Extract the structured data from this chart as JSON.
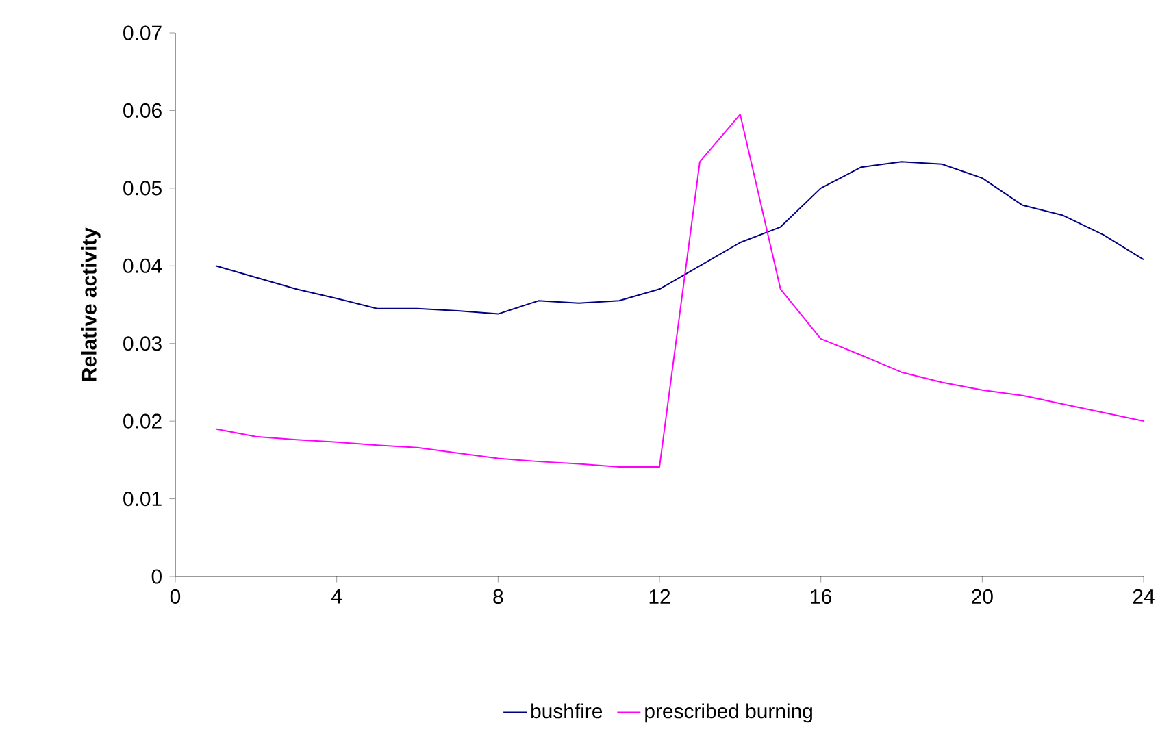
{
  "chart_data": {
    "type": "line",
    "ylabel": "Relative activity",
    "x": [
      1,
      2,
      3,
      4,
      5,
      6,
      7,
      8,
      9,
      10,
      11,
      12,
      13,
      14,
      15,
      16,
      17,
      18,
      19,
      20,
      21,
      22,
      23,
      24
    ],
    "series": [
      {
        "name": "bushfire",
        "color": "#000080",
        "values": [
          0.04,
          0.0385,
          0.037,
          0.0358,
          0.0345,
          0.0345,
          0.0342,
          0.0338,
          0.0355,
          0.0352,
          0.0355,
          0.037,
          0.04,
          0.043,
          0.045,
          0.05,
          0.0527,
          0.0534,
          0.0531,
          0.0513,
          0.0478,
          0.0465,
          0.044,
          0.0408
        ]
      },
      {
        "name": "prescribed burning",
        "color": "#ff00ff",
        "values": [
          0.019,
          0.018,
          0.0176,
          0.0173,
          0.0169,
          0.0166,
          0.0159,
          0.0152,
          0.0148,
          0.0145,
          0.0141,
          0.0141,
          0.0534,
          0.0595,
          0.037,
          0.0306,
          0.0285,
          0.0263,
          0.025,
          0.024,
          0.0233,
          0.0222,
          0.0211,
          0.02
        ]
      }
    ],
    "xlim": [
      0,
      24
    ],
    "xticks": [
      0,
      4,
      8,
      12,
      16,
      20,
      24
    ],
    "ylim": [
      0,
      0.07
    ],
    "yticks": [
      0,
      0.01,
      0.02,
      0.03,
      0.04,
      0.05,
      0.06,
      0.07
    ],
    "grid": false,
    "legend": "bottom",
    "marker": "none",
    "line_style": "solid"
  }
}
